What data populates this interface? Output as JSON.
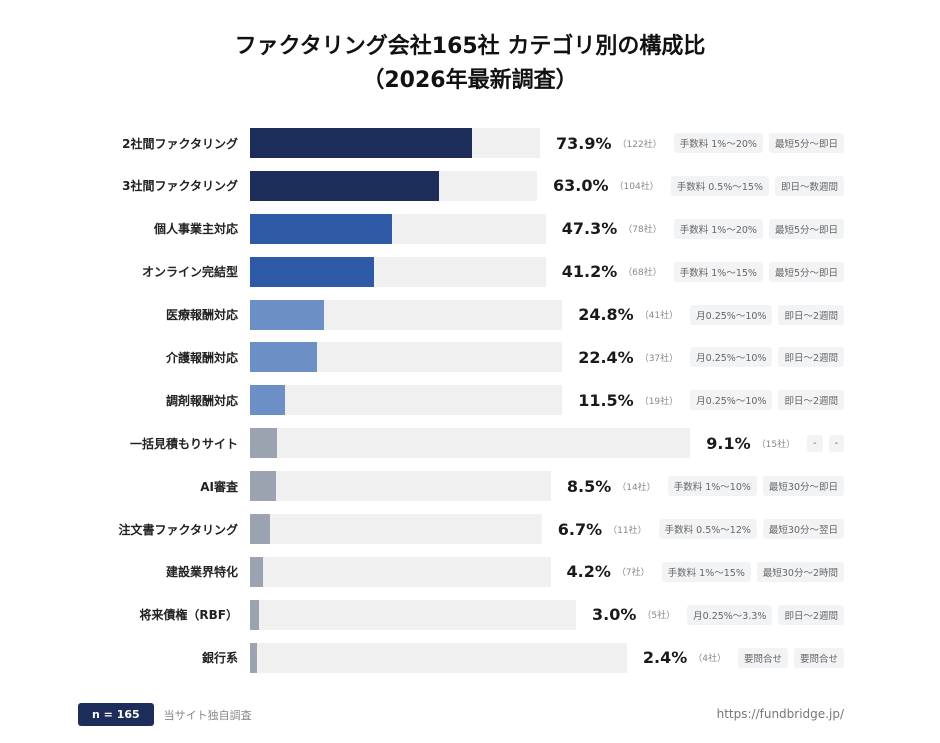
{
  "title_line1": "ファクタリング会社165社 カテゴリ別の構成比",
  "title_line2": "（2026年最新調査）",
  "colors": {
    "navy": "#1c2d5a",
    "blue": "#2e5aa5",
    "lightblue": "#6c90c6",
    "gray": "#9ca3b0",
    "track": "#f0f0f0"
  },
  "chart_data": {
    "type": "bar",
    "orientation": "horizontal",
    "xlim": [
      0,
      100
    ],
    "unit": "%",
    "categories": [
      "2社間ファクタリング",
      "3社間ファクタリング",
      "個人事業主対応",
      "オンライン完結型",
      "医療報酬対応",
      "介護報酬対応",
      "調剤報酬対応",
      "一括見積もりサイト",
      "AI審査",
      "注文書ファクタリング",
      "建設業界特化",
      "将来債権（RBF）",
      "銀行系"
    ],
    "values": [
      73.9,
      63.0,
      47.3,
      41.2,
      24.8,
      22.4,
      11.5,
      9.1,
      8.5,
      6.7,
      4.2,
      3.0,
      2.4
    ],
    "value_labels": [
      "73.9%",
      "63.0%",
      "47.3%",
      "41.2%",
      "24.8%",
      "22.4%",
      "11.5%",
      "9.1%",
      "8.5%",
      "6.7%",
      "4.2%",
      "3.0%",
      "2.4%"
    ],
    "counts": [
      "（122社）",
      "（104社）",
      "（78社）",
      "（68社）",
      "（41社）",
      "（37社）",
      "（19社）",
      "（15社）",
      "（14社）",
      "（11社）",
      "（7社）",
      "（5社）",
      "（4社）"
    ],
    "bar_colors": [
      "navy",
      "navy",
      "blue",
      "blue",
      "lightblue",
      "lightblue",
      "lightblue",
      "gray",
      "gray",
      "gray",
      "gray",
      "gray",
      "gray"
    ],
    "fee_tags": [
      "手数料 1%〜20%",
      "手数料 0.5%〜15%",
      "手数料 1%〜20%",
      "手数料 1%〜15%",
      "月0.25%〜10%",
      "月0.25%〜10%",
      "月0.25%〜10%",
      "-",
      "手数料 1%〜10%",
      "手数料 0.5%〜12%",
      "手数料 1%〜15%",
      "月0.25%〜3.3%",
      "要問合せ"
    ],
    "speed_tags": [
      "最短5分〜即日",
      "即日〜数週間",
      "最短5分〜即日",
      "最短5分〜即日",
      "即日〜2週間",
      "即日〜2週間",
      "即日〜2週間",
      "-",
      "最短30分〜即日",
      "最短30分〜翌日",
      "最短30分〜2時間",
      "即日〜2週間",
      "要問合せ"
    ]
  },
  "footer": {
    "n_badge": "n = 165",
    "source": "当サイト独自調査",
    "url": "https://fundbridge.jp/"
  }
}
